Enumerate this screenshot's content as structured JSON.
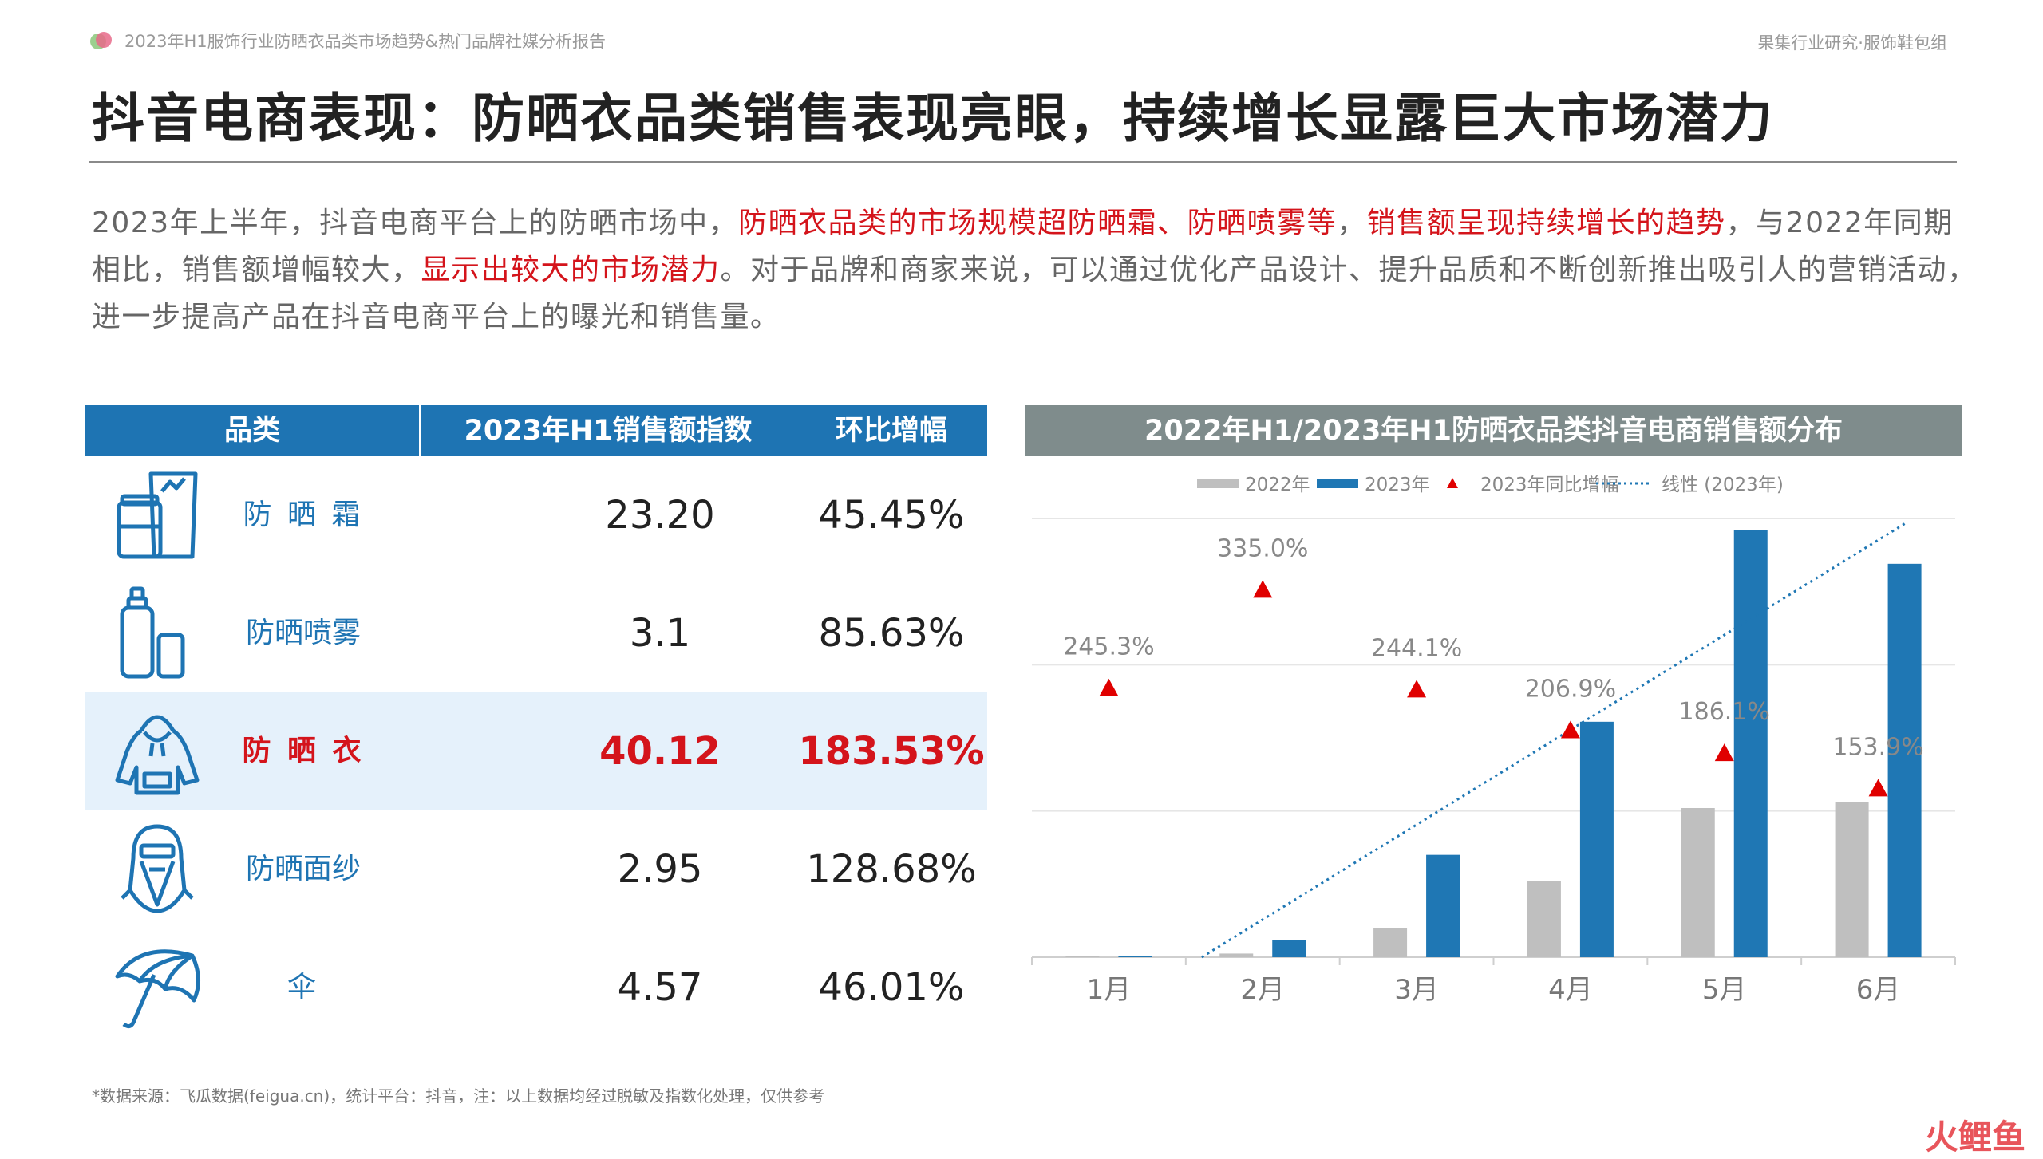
{
  "header": {
    "report_title": "2023年H1服饰行业防晒衣品类市场趋势&热门品牌社媒分析报告",
    "org": "果集行业研究·服饰鞋包组"
  },
  "page_title": "抖音电商表现：防晒衣品类销售表现亮眼，持续增长显露巨大市场潜力",
  "intro": {
    "t1": "2023年上半年，抖音电商平台上的防晒市场中，",
    "h1": "防晒衣品类的市场规模超防晒霜、防晒喷雾等",
    "t2": "，",
    "h2": "销售额呈现持续增长的趋势",
    "t3": "，与2022年同期相比，销售额增幅较大，",
    "h3": "显示出较大的市场潜力",
    "t4": "。对于品牌和商家来说，可以通过优化产品设计、提升品质和不断创新推出吸引人的营销活动，进一步提高产品在抖音电商平台上的曝光和销售量。"
  },
  "table": {
    "headers": [
      "品类",
      "2023年H1销售额指数",
      "环比增幅"
    ],
    "rows": [
      {
        "name": "防 晒 霜",
        "index": "23.20",
        "growth": "45.45%",
        "icon": "sunscreen-bottles-icon"
      },
      {
        "name": "防晒喷雾",
        "index": "3.1",
        "growth": "85.63%",
        "icon": "spray-bottle-icon"
      },
      {
        "name": "防 晒 衣",
        "index": "40.12",
        "growth": "183.53%",
        "icon": "hoodie-icon"
      },
      {
        "name": "防晒面纱",
        "index": "2.95",
        "growth": "128.68%",
        "icon": "face-veil-icon"
      },
      {
        "name": "伞",
        "index": "4.57",
        "growth": "46.01%",
        "icon": "umbrella-icon"
      }
    ]
  },
  "chart_title": "2022年H1/2023年H1防晒衣品类抖音电商销售额分布",
  "chart_data": {
    "type": "bar",
    "categories": [
      "1月",
      "2月",
      "3月",
      "4月",
      "5月",
      "6月"
    ],
    "series": [
      {
        "name": "2022年",
        "type": "bar",
        "color": "#bfbfbf",
        "values": [
          0.1,
          0.25,
          2.0,
          5.2,
          10.2,
          10.6
        ]
      },
      {
        "name": "2023年",
        "type": "bar",
        "color": "#1f77b4",
        "values": [
          0.1,
          1.2,
          7.0,
          16.1,
          29.2,
          26.9
        ]
      },
      {
        "name": "2023年同比增幅",
        "type": "scatter-marker",
        "marker": "triangle",
        "color": "#e00000",
        "values": [
          245.3,
          335.0,
          244.1,
          206.9,
          186.1,
          153.9
        ],
        "labels": [
          "245.3%",
          "335.0%",
          "244.1%",
          "206.9%",
          "186.1%",
          "153.9%"
        ]
      },
      {
        "name": "线性 (2023年)",
        "type": "trendline",
        "style": "dotted",
        "color": "#1f77b4"
      }
    ],
    "ylim": [
      0,
      30
    ],
    "grid": true,
    "legend": "top"
  },
  "footnote": "*数据来源：飞瓜数据(feigua.cn)，统计平台：抖音，注：以上数据均经过脱敏及指数化处理，仅供参考",
  "watermark": "火鲤鱼"
}
